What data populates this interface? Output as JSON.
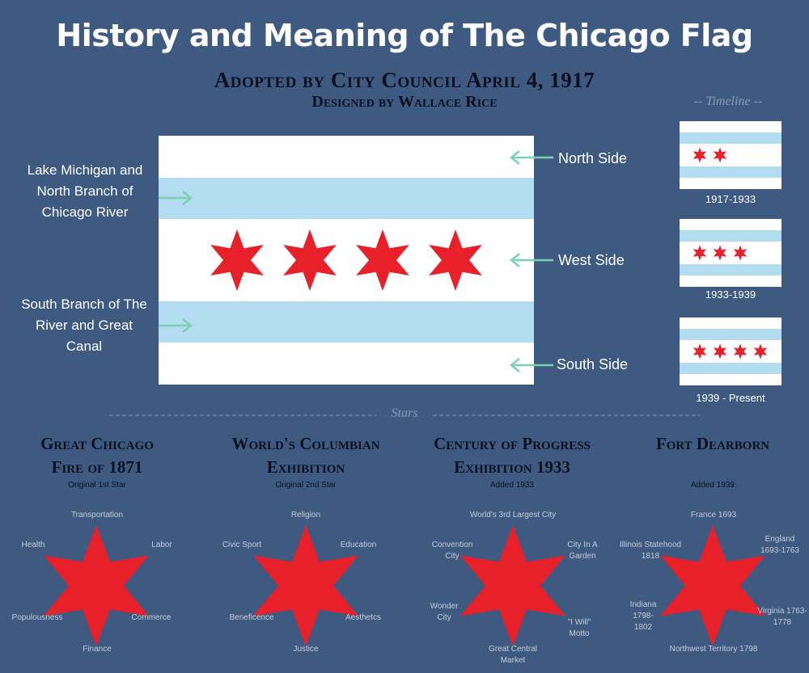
{
  "header": {
    "title": "History and Meaning of The Chicago Flag",
    "adopted": "Adopted by City Council April 4, 1917",
    "designer": "Designed by Wallace Rice"
  },
  "colors": {
    "background": "#3f5a80",
    "flag_white": "#ffffff",
    "flag_blue": "#b3dcf0",
    "star_red": "#e8202a",
    "arrow_green": "#7ad1b0",
    "dark_text": "#0a1020"
  },
  "flag_labels": {
    "north": "North Side",
    "west": "West Side",
    "south": "South Side",
    "lake": [
      "Lake Michigan and",
      "North Branch of",
      "Chicago River"
    ],
    "south_branch": [
      "South Branch of The",
      "River and Great",
      "Canal"
    ]
  },
  "timeline": {
    "label": "-- Timeline --",
    "items": [
      {
        "years": "1917-1933",
        "stars": 2
      },
      {
        "years": "1933-1939",
        "stars": 3
      },
      {
        "years": "1939 - Present",
        "stars": 4
      }
    ]
  },
  "stars_section": {
    "label": "Stars",
    "columns": [
      {
        "title": [
          "Great Chicago",
          "Fire of 1871"
        ],
        "subtitle": "Original 1st Star",
        "points": [
          "Transportation",
          "Labor",
          "Commerce",
          "Finance",
          "Populousness",
          "Health"
        ]
      },
      {
        "title": [
          "World's Columbian",
          "Exhibition"
        ],
        "subtitle": "Original 2nd Star",
        "points": [
          "Religion",
          "Education",
          "Aesthetcs",
          "Justice",
          "Beneficence",
          "Civic Sport"
        ]
      },
      {
        "title": [
          "Century of Progress",
          "Exhibition 1933"
        ],
        "subtitle": "Added 1933",
        "points": [
          "World's 3rd Largest City",
          "City In A Garden",
          "\"I Will\" Motto",
          "Great Central Market",
          "Wonder City",
          "Convention City"
        ]
      },
      {
        "title": [
          "Fort Dearborn",
          ""
        ],
        "subtitle": "Added 1939",
        "points": [
          "France 1693",
          "England 1693-1763",
          "Virginia 1763-1778",
          "Northwest Territory 1798",
          "Indiana 1798-1802",
          "Illinois Statehood 1818"
        ]
      }
    ]
  }
}
